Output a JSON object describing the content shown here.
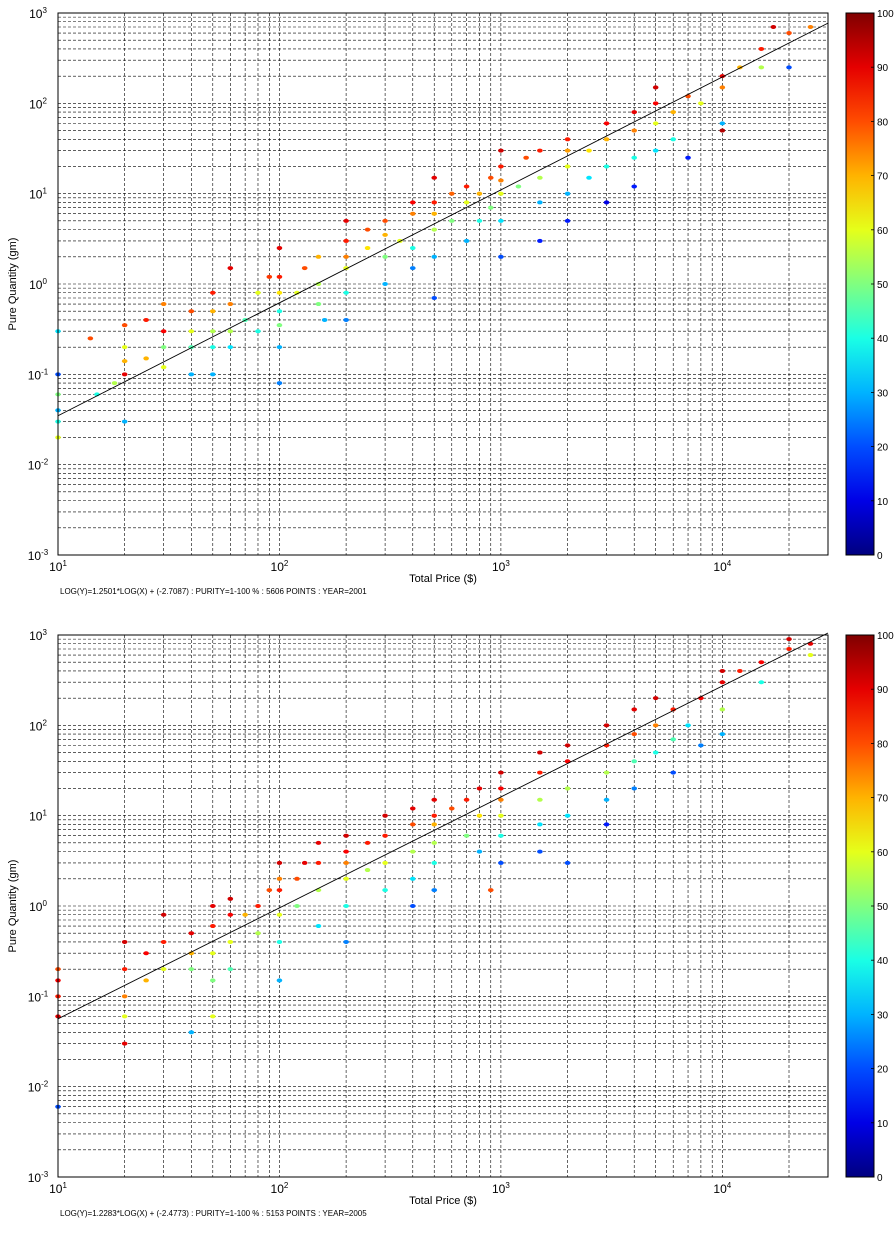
{
  "chart_data": [
    {
      "type": "scatter",
      "title": "",
      "xlabel": "Total Price ($)",
      "ylabel": "Pure Quantity (gm)",
      "xscale": "log",
      "yscale": "log",
      "xlim": [
        10,
        30000
      ],
      "ylim": [
        0.001,
        1000
      ],
      "grid": "dashed, major and minor",
      "colorbar": {
        "min": 0,
        "max": 100,
        "ticks": [
          0,
          10,
          20,
          30,
          40,
          50,
          60,
          70,
          80,
          90,
          100
        ],
        "colormap": "jet",
        "position": "right"
      },
      "caption": "LOG(Y)=1.2501*LOG(X) + (-2.7087) : PURITY=1-100 % : 5606 POINTS : YEAR=2001",
      "fit": {
        "slope": 1.2501,
        "intercept": -2.7087
      },
      "points": [
        [
          10,
          0.04,
          30
        ],
        [
          10,
          0.03,
          40
        ],
        [
          10,
          0.06,
          50
        ],
        [
          10,
          0.1,
          20
        ],
        [
          10,
          0.02,
          60
        ],
        [
          10,
          0.3,
          35
        ],
        [
          14,
          0.25,
          80
        ],
        [
          15,
          0.06,
          40
        ],
        [
          18,
          0.08,
          55
        ],
        [
          20,
          0.1,
          90
        ],
        [
          20,
          0.2,
          60
        ],
        [
          20,
          0.03,
          30
        ],
        [
          20,
          0.35,
          80
        ],
        [
          20,
          0.14,
          70
        ],
        [
          25,
          0.15,
          70
        ],
        [
          25,
          0.4,
          85
        ],
        [
          30,
          0.2,
          50
        ],
        [
          30,
          0.6,
          75
        ],
        [
          30,
          0.12,
          60
        ],
        [
          30,
          0.3,
          88
        ],
        [
          40,
          0.3,
          60
        ],
        [
          40,
          0.1,
          30
        ],
        [
          40,
          0.5,
          80
        ],
        [
          40,
          0.2,
          45
        ],
        [
          50,
          0.5,
          70
        ],
        [
          50,
          0.2,
          40
        ],
        [
          50,
          0.8,
          85
        ],
        [
          50,
          0.1,
          30
        ],
        [
          50,
          0.3,
          55
        ],
        [
          60,
          0.3,
          55
        ],
        [
          60,
          1.5,
          90
        ],
        [
          60,
          0.6,
          75
        ],
        [
          60,
          0.2,
          35
        ],
        [
          70,
          0.4,
          45
        ],
        [
          80,
          0.8,
          60
        ],
        [
          80,
          0.3,
          40
        ],
        [
          90,
          1.2,
          82
        ],
        [
          100,
          0.5,
          40
        ],
        [
          100,
          1.2,
          85
        ],
        [
          100,
          2.5,
          90
        ],
        [
          100,
          0.2,
          30
        ],
        [
          100,
          0.08,
          25
        ],
        [
          100,
          0.8,
          65
        ],
        [
          100,
          0.35,
          50
        ],
        [
          120,
          0.8,
          60
        ],
        [
          130,
          1.5,
          80
        ],
        [
          150,
          2,
          70
        ],
        [
          150,
          0.6,
          50
        ],
        [
          150,
          1,
          55
        ],
        [
          160,
          0.4,
          30
        ],
        [
          200,
          1.5,
          60
        ],
        [
          200,
          3,
          85
        ],
        [
          200,
          0.8,
          40
        ],
        [
          200,
          5,
          90
        ],
        [
          200,
          2,
          75
        ],
        [
          200,
          0.4,
          25
        ],
        [
          250,
          2.5,
          65
        ],
        [
          250,
          4,
          80
        ],
        [
          300,
          5,
          80
        ],
        [
          300,
          2,
          50
        ],
        [
          300,
          1,
          30
        ],
        [
          300,
          3.5,
          70
        ],
        [
          350,
          3,
          60
        ],
        [
          400,
          6,
          75
        ],
        [
          400,
          2.5,
          40
        ],
        [
          400,
          1.5,
          25
        ],
        [
          400,
          8,
          88
        ],
        [
          500,
          8,
          85
        ],
        [
          500,
          4,
          55
        ],
        [
          500,
          15,
          90
        ],
        [
          500,
          2,
          30
        ],
        [
          500,
          6,
          70
        ],
        [
          500,
          0.7,
          20
        ],
        [
          600,
          5,
          50
        ],
        [
          600,
          10,
          78
        ],
        [
          700,
          8,
          60
        ],
        [
          700,
          3,
          30
        ],
        [
          700,
          12,
          85
        ],
        [
          800,
          10,
          70
        ],
        [
          800,
          5,
          40
        ],
        [
          900,
          15,
          80
        ],
        [
          900,
          7,
          50
        ],
        [
          1000,
          10,
          60
        ],
        [
          1000,
          20,
          85
        ],
        [
          1000,
          5,
          35
        ],
        [
          1000,
          2,
          20
        ],
        [
          1000,
          14,
          75
        ],
        [
          1000,
          30,
          92
        ],
        [
          1200,
          12,
          50
        ],
        [
          1300,
          25,
          80
        ],
        [
          1500,
          15,
          55
        ],
        [
          1500,
          8,
          30
        ],
        [
          1500,
          30,
          85
        ],
        [
          1500,
          3,
          15
        ],
        [
          2000,
          20,
          60
        ],
        [
          2000,
          40,
          85
        ],
        [
          2000,
          10,
          30
        ],
        [
          2000,
          5,
          15
        ],
        [
          2000,
          30,
          72
        ],
        [
          2500,
          30,
          65
        ],
        [
          2500,
          15,
          35
        ],
        [
          3000,
          40,
          70
        ],
        [
          3000,
          60,
          88
        ],
        [
          3000,
          20,
          40
        ],
        [
          3000,
          8,
          10
        ],
        [
          4000,
          50,
          75
        ],
        [
          4000,
          25,
          40
        ],
        [
          4000,
          80,
          90
        ],
        [
          4000,
          12,
          15
        ],
        [
          5000,
          60,
          60
        ],
        [
          5000,
          100,
          88
        ],
        [
          5000,
          30,
          35
        ],
        [
          5000,
          150,
          92
        ],
        [
          6000,
          80,
          70
        ],
        [
          6000,
          40,
          40
        ],
        [
          7000,
          120,
          80
        ],
        [
          7000,
          25,
          15
        ],
        [
          8000,
          100,
          60
        ],
        [
          10000,
          150,
          75
        ],
        [
          10000,
          60,
          30
        ],
        [
          10000,
          200,
          90
        ],
        [
          10000,
          50,
          95
        ],
        [
          12000,
          250,
          70
        ],
        [
          15000,
          400,
          85
        ],
        [
          15000,
          250,
          55
        ],
        [
          17000,
          700,
          92
        ],
        [
          20000,
          600,
          80
        ],
        [
          20000,
          250,
          20
        ],
        [
          25000,
          700,
          75
        ]
      ]
    },
    {
      "type": "scatter",
      "title": "",
      "xlabel": "Total Price ($)",
      "ylabel": "Pure Quantity (gm)",
      "xscale": "log",
      "yscale": "log",
      "xlim": [
        10,
        30000
      ],
      "ylim": [
        0.001,
        1000
      ],
      "grid": "dashed, major and minor",
      "colorbar": {
        "min": 0,
        "max": 100,
        "ticks": [
          0,
          10,
          20,
          30,
          40,
          50,
          60,
          70,
          80,
          90,
          100
        ],
        "colormap": "jet",
        "position": "right"
      },
      "caption": "LOG(Y)=1.2283*LOG(X) + (-2.4773) : PURITY=1-100 % : 5153 POINTS : YEAR=2005",
      "fit": {
        "slope": 1.2283,
        "intercept": -2.4773
      },
      "points": [
        [
          10,
          0.1,
          85
        ],
        [
          10,
          0.06,
          90
        ],
        [
          10,
          0.2,
          80
        ],
        [
          10,
          0.006,
          20
        ],
        [
          10,
          0.15,
          88
        ],
        [
          20,
          0.2,
          85
        ],
        [
          20,
          0.1,
          75
        ],
        [
          20,
          0.4,
          92
        ],
        [
          20,
          0.06,
          60
        ],
        [
          20,
          0.03,
          90
        ],
        [
          25,
          0.3,
          88
        ],
        [
          25,
          0.15,
          70
        ],
        [
          30,
          0.4,
          85
        ],
        [
          30,
          0.2,
          60
        ],
        [
          30,
          0.8,
          92
        ],
        [
          40,
          0.5,
          90
        ],
        [
          40,
          0.3,
          70
        ],
        [
          40,
          0.2,
          50
        ],
        [
          40,
          0.04,
          30
        ],
        [
          50,
          0.6,
          85
        ],
        [
          50,
          0.3,
          60
        ],
        [
          50,
          1,
          90
        ],
        [
          50,
          0.15,
          50
        ],
        [
          50,
          0.06,
          60
        ],
        [
          60,
          0.8,
          88
        ],
        [
          60,
          0.4,
          60
        ],
        [
          60,
          1.2,
          92
        ],
        [
          60,
          0.2,
          45
        ],
        [
          70,
          0.8,
          70
        ],
        [
          80,
          1,
          85
        ],
        [
          80,
          0.5,
          55
        ],
        [
          90,
          1.5,
          80
        ],
        [
          100,
          1.5,
          85
        ],
        [
          100,
          3,
          92
        ],
        [
          100,
          0.8,
          60
        ],
        [
          100,
          0.4,
          40
        ],
        [
          100,
          2,
          75
        ],
        [
          100,
          0.15,
          30
        ],
        [
          120,
          2,
          80
        ],
        [
          120,
          1,
          50
        ],
        [
          130,
          3,
          90
        ],
        [
          150,
          3,
          85
        ],
        [
          150,
          1.5,
          55
        ],
        [
          150,
          5,
          90
        ],
        [
          150,
          0.6,
          35
        ],
        [
          200,
          4,
          88
        ],
        [
          200,
          2,
          60
        ],
        [
          200,
          1,
          40
        ],
        [
          200,
          6,
          92
        ],
        [
          200,
          0.4,
          25
        ],
        [
          200,
          3,
          75
        ],
        [
          250,
          5,
          85
        ],
        [
          250,
          2.5,
          55
        ],
        [
          300,
          6,
          85
        ],
        [
          300,
          3,
          60
        ],
        [
          300,
          10,
          92
        ],
        [
          300,
          1.5,
          40
        ],
        [
          400,
          8,
          80
        ],
        [
          400,
          4,
          55
        ],
        [
          400,
          12,
          90
        ],
        [
          400,
          2,
          35
        ],
        [
          400,
          1,
          20
        ],
        [
          500,
          10,
          85
        ],
        [
          500,
          5,
          55
        ],
        [
          500,
          15,
          90
        ],
        [
          500,
          3,
          40
        ],
        [
          500,
          1.5,
          25
        ],
        [
          500,
          8,
          70
        ],
        [
          600,
          12,
          80
        ],
        [
          700,
          15,
          85
        ],
        [
          700,
          6,
          50
        ],
        [
          800,
          20,
          90
        ],
        [
          800,
          10,
          65
        ],
        [
          800,
          4,
          30
        ],
        [
          900,
          1.5,
          80
        ],
        [
          1000,
          20,
          88
        ],
        [
          1000,
          10,
          60
        ],
        [
          1000,
          30,
          92
        ],
        [
          1000,
          6,
          40
        ],
        [
          1000,
          3,
          20
        ],
        [
          1000,
          15,
          75
        ],
        [
          1500,
          30,
          85
        ],
        [
          1500,
          15,
          55
        ],
        [
          1500,
          50,
          92
        ],
        [
          1500,
          8,
          35
        ],
        [
          1500,
          4,
          20
        ],
        [
          2000,
          40,
          88
        ],
        [
          2000,
          20,
          55
        ],
        [
          2000,
          60,
          92
        ],
        [
          2000,
          10,
          35
        ],
        [
          2000,
          3,
          20
        ],
        [
          3000,
          60,
          85
        ],
        [
          3000,
          30,
          55
        ],
        [
          3000,
          100,
          92
        ],
        [
          3000,
          15,
          30
        ],
        [
          3000,
          8,
          15
        ],
        [
          4000,
          80,
          80
        ],
        [
          4000,
          40,
          45
        ],
        [
          4000,
          150,
          90
        ],
        [
          4000,
          20,
          25
        ],
        [
          5000,
          100,
          75
        ],
        [
          5000,
          200,
          92
        ],
        [
          5000,
          50,
          40
        ],
        [
          6000,
          150,
          85
        ],
        [
          6000,
          70,
          45
        ],
        [
          6000,
          30,
          20
        ],
        [
          7000,
          100,
          35
        ],
        [
          8000,
          200,
          88
        ],
        [
          8000,
          60,
          25
        ],
        [
          10000,
          300,
          90
        ],
        [
          10000,
          150,
          55
        ],
        [
          10000,
          400,
          92
        ],
        [
          10000,
          80,
          30
        ],
        [
          12000,
          400,
          85
        ],
        [
          15000,
          500,
          88
        ],
        [
          15000,
          300,
          40
        ],
        [
          20000,
          900,
          92
        ],
        [
          20000,
          700,
          85
        ],
        [
          25000,
          800,
          90
        ],
        [
          25000,
          600,
          60
        ]
      ]
    }
  ]
}
